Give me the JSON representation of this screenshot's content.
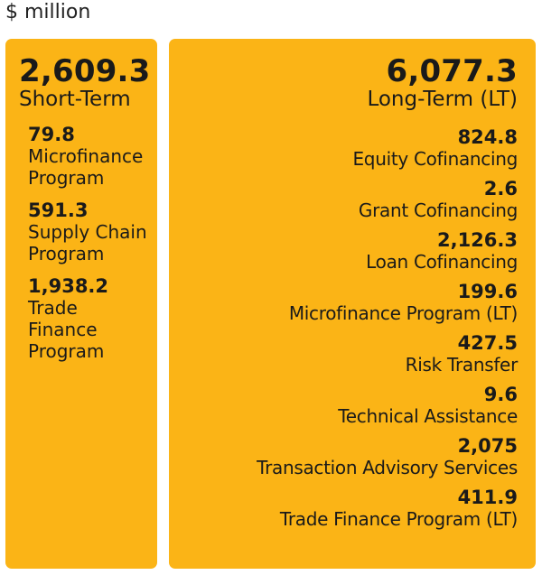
{
  "unit": "$ million",
  "short_term": {
    "total": "2,609.3",
    "label": "Short-Term",
    "items": [
      {
        "value": "79.8",
        "label_lines": [
          "Microfinance",
          "Program"
        ]
      },
      {
        "value": "591.3",
        "label_lines": [
          "Supply Chain",
          "Program"
        ]
      },
      {
        "value": "1,938.2",
        "label_lines": [
          "Trade",
          "Finance",
          "Program"
        ]
      }
    ]
  },
  "long_term": {
    "total": "6,077.3",
    "label": "Long-Term (LT)",
    "items": [
      {
        "value": "824.8",
        "label": "Equity Cofinancing"
      },
      {
        "value": "2.6",
        "label": "Grant Cofinancing"
      },
      {
        "value": "2,126.3",
        "label": "Loan Cofinancing"
      },
      {
        "value": "199.6",
        "label": "Microfinance Program (LT)"
      },
      {
        "value": "427.5",
        "label": "Risk Transfer"
      },
      {
        "value": "9.6",
        "label": "Technical Assistance"
      },
      {
        "value": "2,075",
        "label": "Transaction Advisory Services"
      },
      {
        "value": "411.9",
        "label": "Trade Finance Program (LT)"
      }
    ]
  },
  "colors": {
    "panel": "#FBB416",
    "text": "#1a1a1a",
    "background": "#ffffff"
  }
}
